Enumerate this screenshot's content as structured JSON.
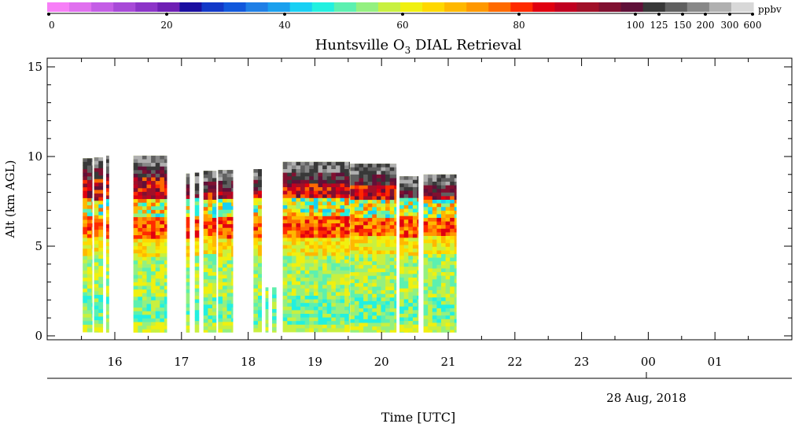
{
  "chart_data": {
    "type": "heatmap",
    "title": "Huntsville O",
    "title_sub": "3",
    "title_rest": " DIAL Retrieval",
    "xlabel": "Time [UTC]",
    "ylabel": "Alt (km AGL)",
    "date_label": "28 Aug, 2018",
    "x_ticks": [
      "16",
      "17",
      "18",
      "19",
      "20",
      "21",
      "22",
      "23",
      "00",
      "01"
    ],
    "y_ticks": [
      "0",
      "5",
      "10",
      "15"
    ],
    "ylim": [
      0,
      16
    ],
    "colorbar": {
      "unit": "ppbv",
      "tick_labels": [
        "0",
        "20",
        "40",
        "60",
        "80",
        "100",
        "125",
        "150",
        "200",
        "300",
        "600"
      ],
      "colors": [
        "#f77ff7",
        "#e070ef",
        "#c45ee6",
        "#a84ad8",
        "#8c34c8",
        "#6e1fb4",
        "#1a0ea0",
        "#1238c8",
        "#1158dc",
        "#1f7fe6",
        "#1aa0ee",
        "#18d0f4",
        "#22f0e0",
        "#5cf0b0",
        "#94f080",
        "#c8f040",
        "#f0f010",
        "#ffd800",
        "#ffb800",
        "#ff9800",
        "#ff6a00",
        "#ff2a00",
        "#e00010",
        "#c00020",
        "#a01028",
        "#801030",
        "#601038",
        "#383838",
        "#606060",
        "#888888",
        "#b0b0b0",
        "#d8d8d8"
      ]
    },
    "profiles": [
      {
        "t_start": 15.52,
        "t_end": 15.66,
        "top": 9.9,
        "bottom": 0.2
      },
      {
        "t_start": 15.69,
        "t_end": 15.82,
        "top": 9.95,
        "bottom": 0.2
      },
      {
        "t_start": 15.87,
        "t_end": 15.91,
        "top": 10.05,
        "bottom": 0.2
      },
      {
        "t_start": 16.28,
        "t_end": 16.78,
        "top": 10.05,
        "bottom": 0.2
      },
      {
        "t_start": 17.07,
        "t_end": 17.12,
        "top": 9.05,
        "bottom": 0.2
      },
      {
        "t_start": 17.2,
        "t_end": 17.26,
        "top": 9.1,
        "bottom": 0.2
      },
      {
        "t_start": 17.33,
        "t_end": 17.52,
        "top": 9.2,
        "bottom": 0.2
      },
      {
        "t_start": 17.55,
        "t_end": 17.77,
        "top": 9.25,
        "bottom": 0.2
      },
      {
        "t_start": 18.08,
        "t_end": 18.2,
        "top": 9.3,
        "bottom": 0.2
      },
      {
        "t_start": 18.26,
        "t_end": 18.3,
        "top": 2.7,
        "bottom": 0.2
      },
      {
        "t_start": 18.36,
        "t_end": 18.42,
        "top": 2.7,
        "bottom": 0.2
      },
      {
        "t_start": 18.52,
        "t_end": 19.52,
        "top": 9.7,
        "bottom": 0.2
      },
      {
        "t_start": 19.53,
        "t_end": 20.22,
        "top": 9.6,
        "bottom": 0.2
      },
      {
        "t_start": 20.27,
        "t_end": 20.55,
        "top": 8.9,
        "bottom": 0.2
      },
      {
        "t_start": 20.63,
        "t_end": 21.12,
        "top": 9.0,
        "bottom": 0.2
      }
    ],
    "grid": false,
    "legend": "colorbar top"
  }
}
